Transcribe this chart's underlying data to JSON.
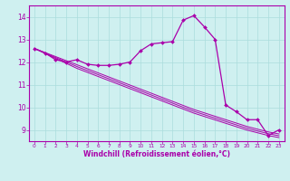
{
  "xlabel": "Windchill (Refroidissement éolien,°C)",
  "bg_color": "#cff0f0",
  "line_color": "#aa00aa",
  "grid_color": "#aadddd",
  "hours": [
    0,
    1,
    2,
    3,
    4,
    5,
    6,
    7,
    8,
    9,
    10,
    11,
    12,
    13,
    14,
    15,
    16,
    17,
    18,
    19,
    20,
    21,
    22,
    23
  ],
  "main_data": [
    12.6,
    12.4,
    12.1,
    12.0,
    12.1,
    11.9,
    11.85,
    11.85,
    11.9,
    12.0,
    12.5,
    12.8,
    12.85,
    12.9,
    13.85,
    14.05,
    13.55,
    13.0,
    10.1,
    9.8,
    9.45,
    9.45,
    8.75,
    9.0
  ],
  "trend1": [
    12.6,
    12.42,
    12.24,
    12.06,
    11.88,
    11.7,
    11.52,
    11.34,
    11.16,
    10.98,
    10.8,
    10.62,
    10.44,
    10.26,
    10.08,
    9.9,
    9.75,
    9.6,
    9.45,
    9.3,
    9.15,
    9.03,
    8.91,
    8.82
  ],
  "trend2": [
    12.6,
    12.4,
    12.2,
    12.0,
    11.8,
    11.62,
    11.44,
    11.26,
    11.08,
    10.9,
    10.72,
    10.54,
    10.36,
    10.18,
    10.0,
    9.82,
    9.67,
    9.52,
    9.37,
    9.22,
    9.07,
    8.95,
    8.83,
    8.74
  ],
  "trend3": [
    12.6,
    12.38,
    12.16,
    11.94,
    11.72,
    11.54,
    11.36,
    11.18,
    11.0,
    10.82,
    10.64,
    10.46,
    10.28,
    10.1,
    9.92,
    9.74,
    9.59,
    9.44,
    9.29,
    9.14,
    8.99,
    8.87,
    8.75,
    8.66
  ],
  "xlim": [
    -0.5,
    23.5
  ],
  "ylim": [
    8.5,
    14.5
  ],
  "yticks": [
    9,
    10,
    11,
    12,
    13,
    14
  ],
  "xticks": [
    0,
    1,
    2,
    3,
    4,
    5,
    6,
    7,
    8,
    9,
    10,
    11,
    12,
    13,
    14,
    15,
    16,
    17,
    18,
    19,
    20,
    21,
    22,
    23
  ],
  "xlabel_fontsize": 5.5,
  "xtick_fontsize": 4.2,
  "ytick_fontsize": 5.5,
  "linewidth_main": 0.9,
  "linewidth_trend": 0.7,
  "marker_size": 2.0
}
